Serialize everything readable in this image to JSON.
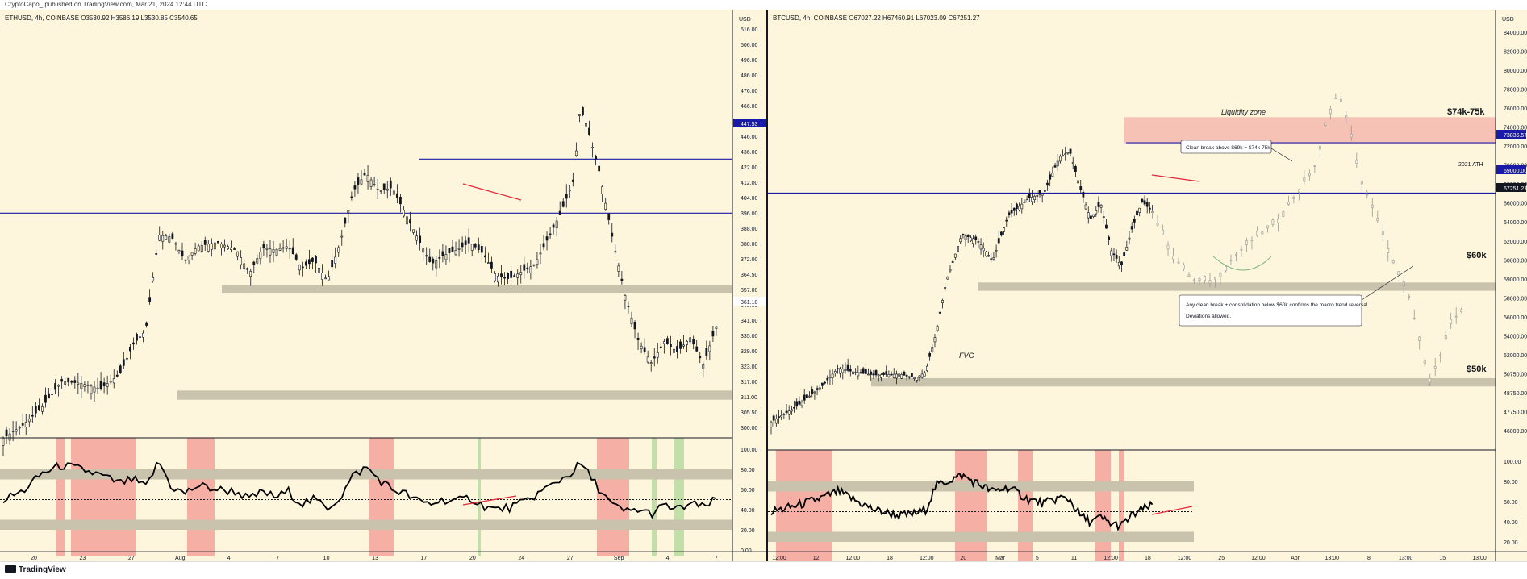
{
  "publisher": "CryptoCapo_ published on TradingView.com, Mar 21, 2024 12:44 UTC",
  "footer_logo": "TradingView",
  "colors": {
    "background": "#fdf6dc",
    "candle": "#131722",
    "level_line": "#1a1aa8",
    "zone": "#c9c3ad",
    "rsi_red": "#f4a29a",
    "rsi_green": "#b7d9a0",
    "liq_zone": "#f6c2b5",
    "divergence": "#e0263a"
  },
  "chart_data": [
    {
      "type": "candlestick",
      "symbol_header": "ETHUSD, 4h, COINBASE  O3530.92  H3586.19  L3530.85  C3540.65",
      "currency": "USD",
      "y_ticks": [
        "516.00",
        "506.00",
        "496.00",
        "486.00",
        "476.00",
        "466.00",
        "456.00",
        "446.00",
        "436.00",
        "422.00",
        "412.00",
        "404.00",
        "396.00",
        "388.00",
        "380.00",
        "372.00",
        "364.50",
        "357.00",
        "348.00",
        "341.00",
        "335.00",
        "329.00",
        "323.00",
        "317.00",
        "311.00",
        "305.50",
        "300.00"
      ],
      "price_labels": [
        "447.53",
        "361.10"
      ],
      "x_ticks": [
        "20",
        "23",
        "27",
        "Aug",
        "4",
        "7",
        "10",
        "13",
        "17",
        "20",
        "24",
        "27",
        "Sep",
        "4",
        "7"
      ],
      "rsi_ticks": [
        "100.00",
        "80.00",
        "60.00",
        "40.00",
        "20.00",
        "0.00"
      ],
      "levels": [
        447.53,
        418
      ],
      "zones": [
        [
          374.5,
          378.5
        ],
        [
          316,
          321
        ]
      ],
      "price_path": [
        [
          0,
          295
        ],
        [
          3,
          302
        ],
        [
          6,
          312
        ],
        [
          9,
          326
        ],
        [
          12,
          325
        ],
        [
          15,
          322
        ],
        [
          18,
          330
        ],
        [
          20,
          346
        ],
        [
          22,
          354
        ],
        [
          24,
          406
        ],
        [
          26,
          405
        ],
        [
          28,
          392
        ],
        [
          30,
          400
        ],
        [
          33,
          402
        ],
        [
          36,
          398
        ],
        [
          38,
          385
        ],
        [
          40,
          399
        ],
        [
          42,
          398
        ],
        [
          44,
          400
        ],
        [
          46,
          388
        ],
        [
          48,
          392
        ],
        [
          50,
          381
        ],
        [
          52,
          402
        ],
        [
          54,
          430
        ],
        [
          56,
          440
        ],
        [
          58,
          430
        ],
        [
          60,
          432
        ],
        [
          62,
          418
        ],
        [
          64,
          404
        ],
        [
          66,
          390
        ],
        [
          68,
          395
        ],
        [
          70,
          398
        ],
        [
          72,
          402
        ],
        [
          74,
          396
        ],
        [
          76,
          384
        ],
        [
          78,
          382
        ],
        [
          80,
          386
        ],
        [
          82,
          390
        ],
        [
          84,
          404
        ],
        [
          86,
          418
        ],
        [
          88,
          436
        ],
        [
          89,
          476
        ],
        [
          90,
          466
        ],
        [
          92,
          440
        ],
        [
          94,
          404
        ],
        [
          96,
          372
        ],
        [
          98,
          348
        ],
        [
          100,
          336
        ],
        [
          102,
          348
        ],
        [
          104,
          342
        ],
        [
          106,
          350
        ],
        [
          108,
          335
        ],
        [
          110,
          356
        ]
      ],
      "rsi_path": [
        [
          0,
          50
        ],
        [
          3,
          58
        ],
        [
          6,
          76
        ],
        [
          9,
          84
        ],
        [
          12,
          80
        ],
        [
          15,
          74
        ],
        [
          18,
          66
        ],
        [
          20,
          70
        ],
        [
          22,
          62
        ],
        [
          24,
          88
        ],
        [
          26,
          62
        ],
        [
          28,
          56
        ],
        [
          30,
          64
        ],
        [
          33,
          60
        ],
        [
          36,
          58
        ],
        [
          38,
          50
        ],
        [
          40,
          58
        ],
        [
          42,
          52
        ],
        [
          44,
          58
        ],
        [
          46,
          46
        ],
        [
          48,
          50
        ],
        [
          50,
          42
        ],
        [
          52,
          52
        ],
        [
          54,
          74
        ],
        [
          56,
          82
        ],
        [
          58,
          70
        ],
        [
          60,
          60
        ],
        [
          62,
          56
        ],
        [
          64,
          48
        ],
        [
          66,
          46
        ],
        [
          68,
          50
        ],
        [
          70,
          48
        ],
        [
          72,
          52
        ],
        [
          74,
          44
        ],
        [
          76,
          40
        ],
        [
          78,
          42
        ],
        [
          80,
          46
        ],
        [
          82,
          54
        ],
        [
          84,
          62
        ],
        [
          86,
          70
        ],
        [
          88,
          78
        ],
        [
          89,
          86
        ],
        [
          90,
          78
        ],
        [
          92,
          60
        ],
        [
          94,
          44
        ],
        [
          96,
          38
        ],
        [
          98,
          40
        ],
        [
          100,
          36
        ],
        [
          102,
          44
        ],
        [
          104,
          40
        ],
        [
          106,
          46
        ],
        [
          108,
          42
        ],
        [
          110,
          50
        ]
      ]
    },
    {
      "type": "candlestick",
      "symbol_header": "BTCUSD, 4h, COINBASE  O67027.22  H67460.91  L67023.09  C67251.27",
      "currency": "USD",
      "y_ticks": [
        "84000.00",
        "82000.00",
        "80000.00",
        "78000.00",
        "76000.00",
        "74000.00",
        "72000.00",
        "70000.00",
        "68000.00",
        "66000.00",
        "64000.00",
        "62000.00",
        "60000.00",
        "59000.00",
        "58000.00",
        "56000.00",
        "54000.00",
        "52000.00",
        "50750.00",
        "48750.00",
        "47750.00",
        "46000.00"
      ],
      "price_labels": [
        "73835.57",
        "69000.00",
        "67251.27"
      ],
      "x_ticks": [
        "12:00",
        "12",
        "12:00",
        "18",
        "12:00",
        "20",
        "Mar",
        "5",
        "11",
        "12:00",
        "18",
        "12:00",
        "25",
        "12:00",
        "Apr",
        "13:00",
        "8",
        "13:00",
        "15",
        "13:00"
      ],
      "rsi_ticks": [
        "100.00",
        "80.00",
        "60.00",
        "40.00",
        "20.00"
      ],
      "levels": [
        73835.57,
        69000
      ],
      "zones": [
        [
          59600,
          60400
        ],
        [
          50400,
          51200
        ]
      ],
      "liquidity_zone": [
        73800,
        76300
      ],
      "annotations": {
        "liquidity_zone": "Liquidity zone",
        "target_74_75": "$74k-75k",
        "ath": "2021 ATH",
        "level_60k": "$60k",
        "level_50k": "$50k",
        "fvg": "FVG",
        "callout_1": "Clean break above $69k = $74k-75k",
        "callout_2_line1": "Any clean break + consolidation below $60k confirms the macro trend reversal.",
        "callout_2_line2": "Deviations allowed."
      },
      "price_path": [
        [
          0,
          47000
        ],
        [
          5,
          48500
        ],
        [
          10,
          50500
        ],
        [
          13,
          52200
        ],
        [
          16,
          51800
        ],
        [
          20,
          51500
        ],
        [
          25,
          51600
        ],
        [
          28,
          51200
        ],
        [
          30,
          51800
        ],
        [
          32,
          55500
        ],
        [
          34,
          60500
        ],
        [
          37,
          65000
        ],
        [
          40,
          64500
        ],
        [
          43,
          62500
        ],
        [
          46,
          66800
        ],
        [
          50,
          68500
        ],
        [
          53,
          69000
        ],
        [
          56,
          72500
        ],
        [
          58,
          73000
        ],
        [
          60,
          69500
        ],
        [
          62,
          66500
        ],
        [
          64,
          68000
        ],
        [
          66,
          63500
        ],
        [
          68,
          62000
        ],
        [
          70,
          65500
        ],
        [
          72,
          68200
        ],
        [
          74,
          67200
        ]
      ],
      "projection_path": [
        [
          74,
          67200
        ],
        [
          78,
          63000
        ],
        [
          82,
          60600
        ],
        [
          86,
          60600
        ],
        [
          90,
          63000
        ],
        [
          94,
          64800
        ],
        [
          98,
          66200
        ],
        [
          102,
          69000
        ],
        [
          106,
          72000
        ],
        [
          108,
          76500
        ],
        [
          110,
          78500
        ],
        [
          112,
          76000
        ],
        [
          114,
          71000
        ],
        [
          116,
          68500
        ],
        [
          118,
          66000
        ],
        [
          121,
          62000
        ],
        [
          124,
          58800
        ],
        [
          126,
          54500
        ],
        [
          128,
          51000
        ],
        [
          130,
          53500
        ],
        [
          132,
          56500
        ],
        [
          134,
          57800
        ]
      ],
      "rsi_path": [
        [
          0,
          50
        ],
        [
          5,
          56
        ],
        [
          10,
          64
        ],
        [
          13,
          70
        ],
        [
          16,
          62
        ],
        [
          20,
          52
        ],
        [
          25,
          46
        ],
        [
          28,
          48
        ],
        [
          30,
          52
        ],
        [
          32,
          76
        ],
        [
          34,
          80
        ],
        [
          37,
          86
        ],
        [
          40,
          78
        ],
        [
          43,
          70
        ],
        [
          46,
          74
        ],
        [
          50,
          62
        ],
        [
          53,
          58
        ],
        [
          56,
          64
        ],
        [
          58,
          62
        ],
        [
          60,
          46
        ],
        [
          62,
          40
        ],
        [
          64,
          44
        ],
        [
          66,
          38
        ],
        [
          68,
          36
        ],
        [
          70,
          46
        ],
        [
          72,
          52
        ],
        [
          74,
          56
        ]
      ]
    }
  ]
}
